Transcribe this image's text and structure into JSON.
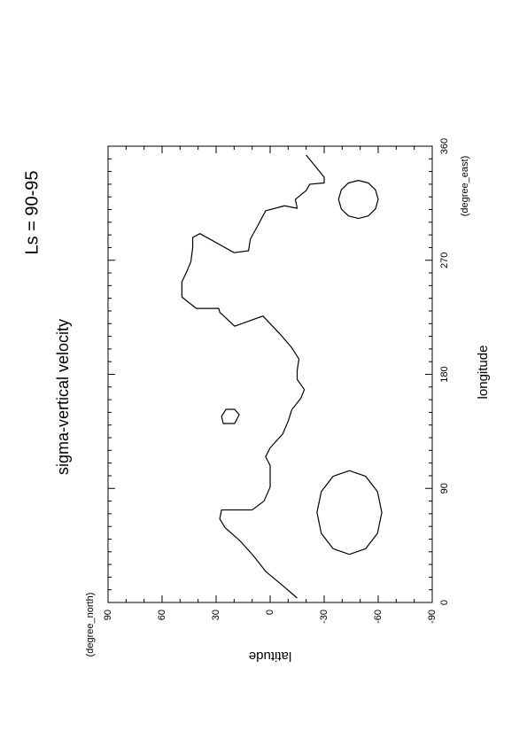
{
  "chart_data": {
    "type": "contour",
    "title": "Ls = 90-95",
    "subtitle": "sigma-vertical velocity",
    "x_label": "longitude",
    "x_unit": "(degree_east)",
    "y_label": "latitude",
    "y_unit": "(degree_north)",
    "xlim": [
      0,
      360
    ],
    "xticks": [
      0,
      90,
      180,
      270,
      360
    ],
    "ylim": [
      -90,
      90
    ],
    "yticks": [
      -90,
      -60,
      -30,
      0,
      30,
      60,
      90
    ],
    "color": "#000000",
    "contours": [
      {
        "x": [
          3.5,
          14,
          24.5,
          33.5,
          38,
          49,
          59,
          66,
          73,
          73,
          80,
          91,
          108,
          115,
          122,
          133,
          143,
          152,
          161,
          168,
          176,
          183,
          192,
          201,
          211,
          226,
          218,
          229,
          232,
          232,
          241,
          253,
          262,
          269,
          280,
          288,
          291,
          276,
          277.5,
          286.6,
          297,
          309,
          313,
          311,
          318,
          325,
          330,
          331,
          335.5,
          342.5,
          353
        ],
        "y": [
          -15,
          -6.4,
          2.5,
          7.4,
          10,
          17,
          25,
          28,
          27,
          10,
          3.4,
          0,
          0,
          2.5,
          0,
          -7,
          -10,
          -12,
          -17,
          -19,
          -15,
          -15,
          -16,
          -12,
          -6,
          4,
          19.7,
          28,
          28.5,
          41,
          49,
          49,
          46,
          44,
          43,
          43,
          39,
          20,
          12,
          11,
          7,
          2.5,
          -8,
          -15,
          -14,
          -20,
          -22,
          -30,
          -30,
          -26,
          -20
        ]
      },
      {
        "x": [
          146.8,
          152.4,
          152.4,
          148.2,
          141.2,
          141.2,
          146.8
        ],
        "y": [
          27,
          24.5,
          19.7,
          17.2,
          19.7,
          26,
          27
        ]
      },
      {
        "x": [
          104,
          99.6,
          87.5,
          71,
          54.5,
          42.4,
          38,
          42.4,
          54.5,
          71,
          87.5,
          99.6,
          104
        ],
        "y": [
          -44,
          -35,
          -28.4,
          -26,
          -28.4,
          -35,
          -44,
          -53,
          -59.6,
          -62,
          -59.6,
          -53,
          -44
        ]
      },
      {
        "x": [
          333,
          331,
          325.5,
          318,
          310.5,
          305,
          303,
          305,
          310.5,
          318,
          325.5,
          331,
          333
        ],
        "y": [
          -49,
          -43.5,
          -39.5,
          -38,
          -39.5,
          -43.5,
          -49,
          -54.5,
          -58.5,
          -60,
          -58.5,
          -54.5,
          -49
        ]
      }
    ]
  }
}
